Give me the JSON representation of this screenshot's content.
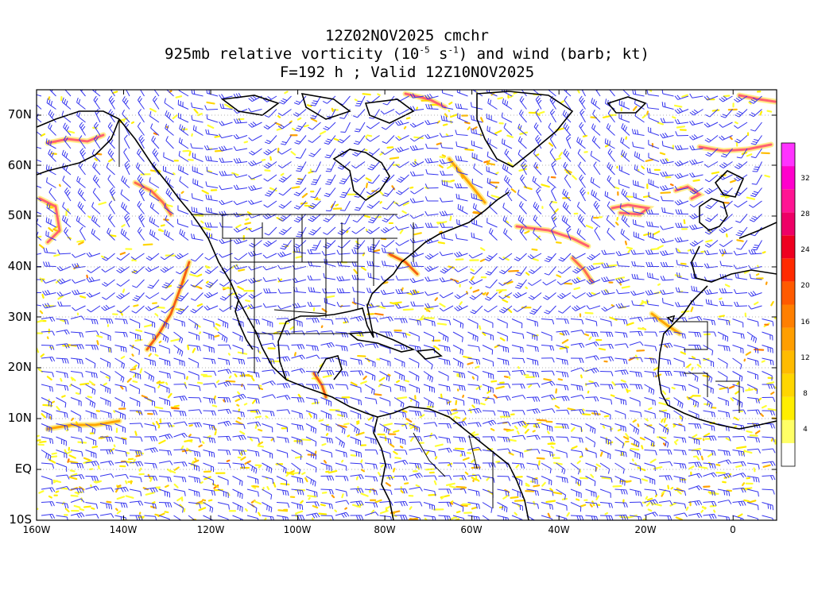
{
  "title": {
    "line1": "12Z02NOV2025 cmchr",
    "line2_pre": "925mb relative vorticity (10",
    "line2_exp1": "-5",
    "line2_mid": " s",
    "line2_exp2": "-1",
    "line2_post": ") and wind (barb; kt)",
    "line3": "F=192 h ; Valid 12Z10NOV2025"
  },
  "lat_labels": [
    "70N",
    "60N",
    "50N",
    "40N",
    "30N",
    "20N",
    "10N",
    "EQ",
    "10S"
  ],
  "lon_labels": [
    "160W",
    "140W",
    "120W",
    "100W",
    "80W",
    "60W",
    "40W",
    "20W",
    "0"
  ],
  "colorbar": {
    "labels": [
      "4",
      "8",
      "12",
      "16",
      "20",
      "24",
      "28",
      "32"
    ],
    "colors": [
      "#ffffff",
      "#ffff66",
      "#ffee00",
      "#ffd600",
      "#ffbb00",
      "#ff9e00",
      "#ff7f00",
      "#ff5a00",
      "#ff2a00",
      "#ee0020",
      "#ee0066",
      "#ff1493",
      "#ff00cc",
      "#ff33ff"
    ]
  },
  "map": {
    "lon_range": [
      -160,
      10
    ],
    "lat_range": [
      -10,
      75
    ],
    "barb_color": "#3333ee",
    "coast_color": "#000000"
  }
}
